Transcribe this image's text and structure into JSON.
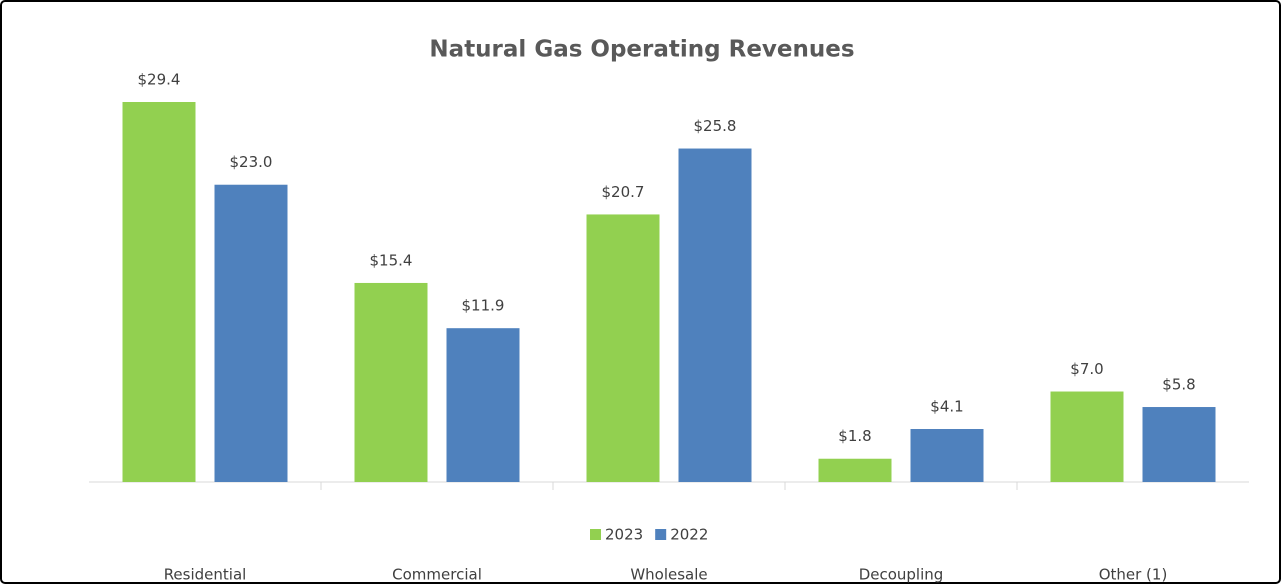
{
  "chart_data": {
    "type": "bar",
    "title": "Natural Gas Operating Revenues",
    "categories": [
      "Residential",
      "Commercial",
      "Wholesale",
      "Decoupling",
      "Other (1)"
    ],
    "series": [
      {
        "name": "2023",
        "color": "#92d050",
        "values": [
          29.4,
          15.4,
          20.7,
          1.8,
          7.0
        ],
        "value_labels": [
          "$29.4",
          "$15.4",
          "$20.7",
          "$1.8",
          "$7.0"
        ]
      },
      {
        "name": "2022",
        "color": "#4f81bd",
        "values": [
          23.0,
          11.9,
          25.8,
          4.1,
          5.8
        ],
        "value_labels": [
          "$23.0",
          "$11.9",
          "$25.8",
          "$4.1",
          "$5.8"
        ]
      }
    ],
    "legend": "bottom"
  }
}
